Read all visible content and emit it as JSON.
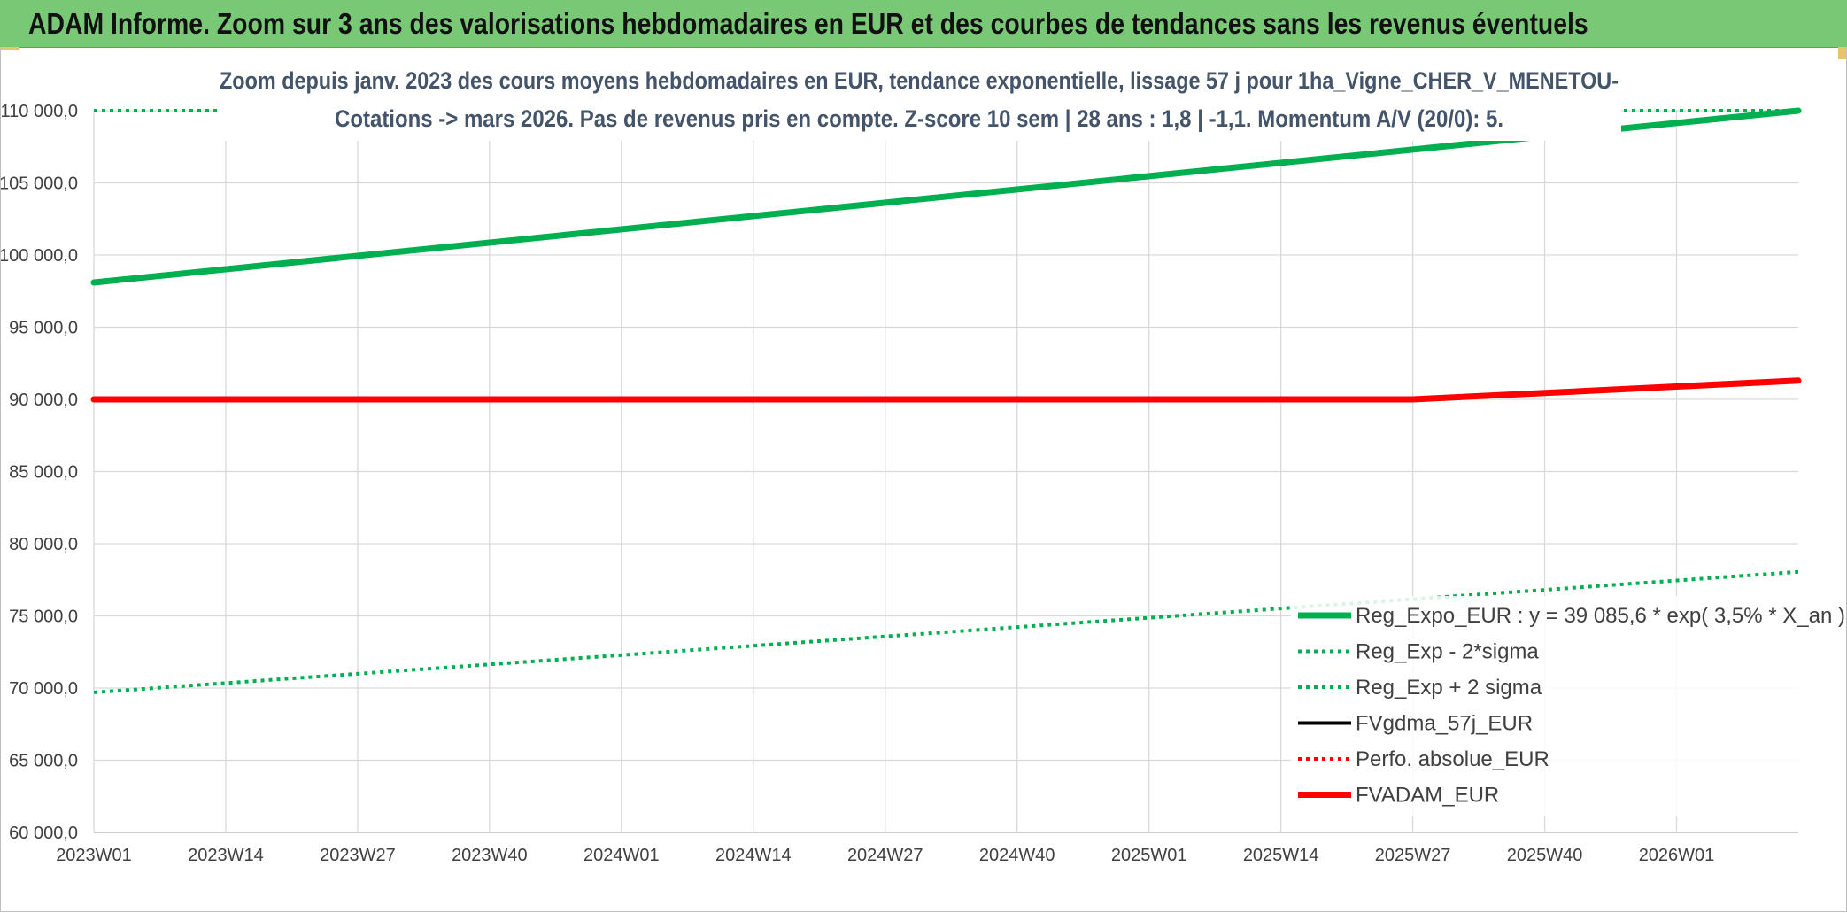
{
  "header": {
    "title": "ADAM Informe. Zoom sur 3 ans des valorisations hebdomadaires en EUR et des courbes de tendances sans les revenus éventuels"
  },
  "colors": {
    "header_bg": "#78c876",
    "green": "#00b050",
    "red": "#ff0000",
    "black": "#000000",
    "grid": "#d9d9d9"
  },
  "chart_data": {
    "type": "line",
    "title_lines": [
      "Zoom depuis janv. 2023 des cours moyens hebdomadaires en EUR, tendance exponentielle, lissage 57 j pour 1ha_Vigne_CHER_V_MENETOU-",
      "Cotations -> mars 2026. Pas de revenus pris en compte. Z-score 10 sem | 28 ans : 1,8 | -1,1. Momentum A/V (20/0): 5."
    ],
    "x_ticks": [
      "2023W01",
      "2023W14",
      "2023W27",
      "2023W40",
      "2024W01",
      "2024W14",
      "2024W27",
      "2024W40",
      "2025W01",
      "2025W14",
      "2025W27",
      "2025W40",
      "2026W01"
    ],
    "x_range": [
      "2023W01",
      "2026W13"
    ],
    "ylim": [
      60000,
      110000
    ],
    "y_ticks": [
      "60 000,0",
      "65 000,0",
      "70 000,0",
      "75 000,0",
      "80 000,0",
      "85 000,0",
      "90 000,0",
      "95 000,0",
      "100 000,0",
      "105 000,0",
      "110 000,0"
    ],
    "grid": true,
    "legend_position": "bottom-right",
    "series": [
      {
        "name": "Reg_Expo_EUR : y = 39 085,6 * exp( 3,5% *  X_an )",
        "style": "solid-thick",
        "color": "#00b050",
        "points": [
          [
            "2023W01",
            98100
          ],
          [
            "2026W13",
            110000
          ]
        ]
      },
      {
        "name": "Reg_Exp - 2*sigma",
        "style": "dotted",
        "color": "#00b050",
        "points": [
          [
            "2023W01",
            69700
          ],
          [
            "2026W13",
            78050
          ]
        ]
      },
      {
        "name": "Reg_Exp + 2 sigma",
        "style": "dotted",
        "color": "#00b050",
        "points": [
          [
            "2023W01",
            110000
          ],
          [
            "2026W13",
            110000
          ]
        ]
      },
      {
        "name": "FVgdma_57j_EUR",
        "style": "solid",
        "color": "#000000",
        "points": []
      },
      {
        "name": "Perfo. absolue_EUR",
        "style": "dotted",
        "color": "#ff0000",
        "points": []
      },
      {
        "name": "FVADAM_EUR",
        "style": "solid-thick",
        "color": "#ff0000",
        "points": [
          [
            "2023W01",
            90000
          ],
          [
            "2025W27",
            90000
          ],
          [
            "2026W13",
            91300
          ]
        ]
      }
    ]
  }
}
